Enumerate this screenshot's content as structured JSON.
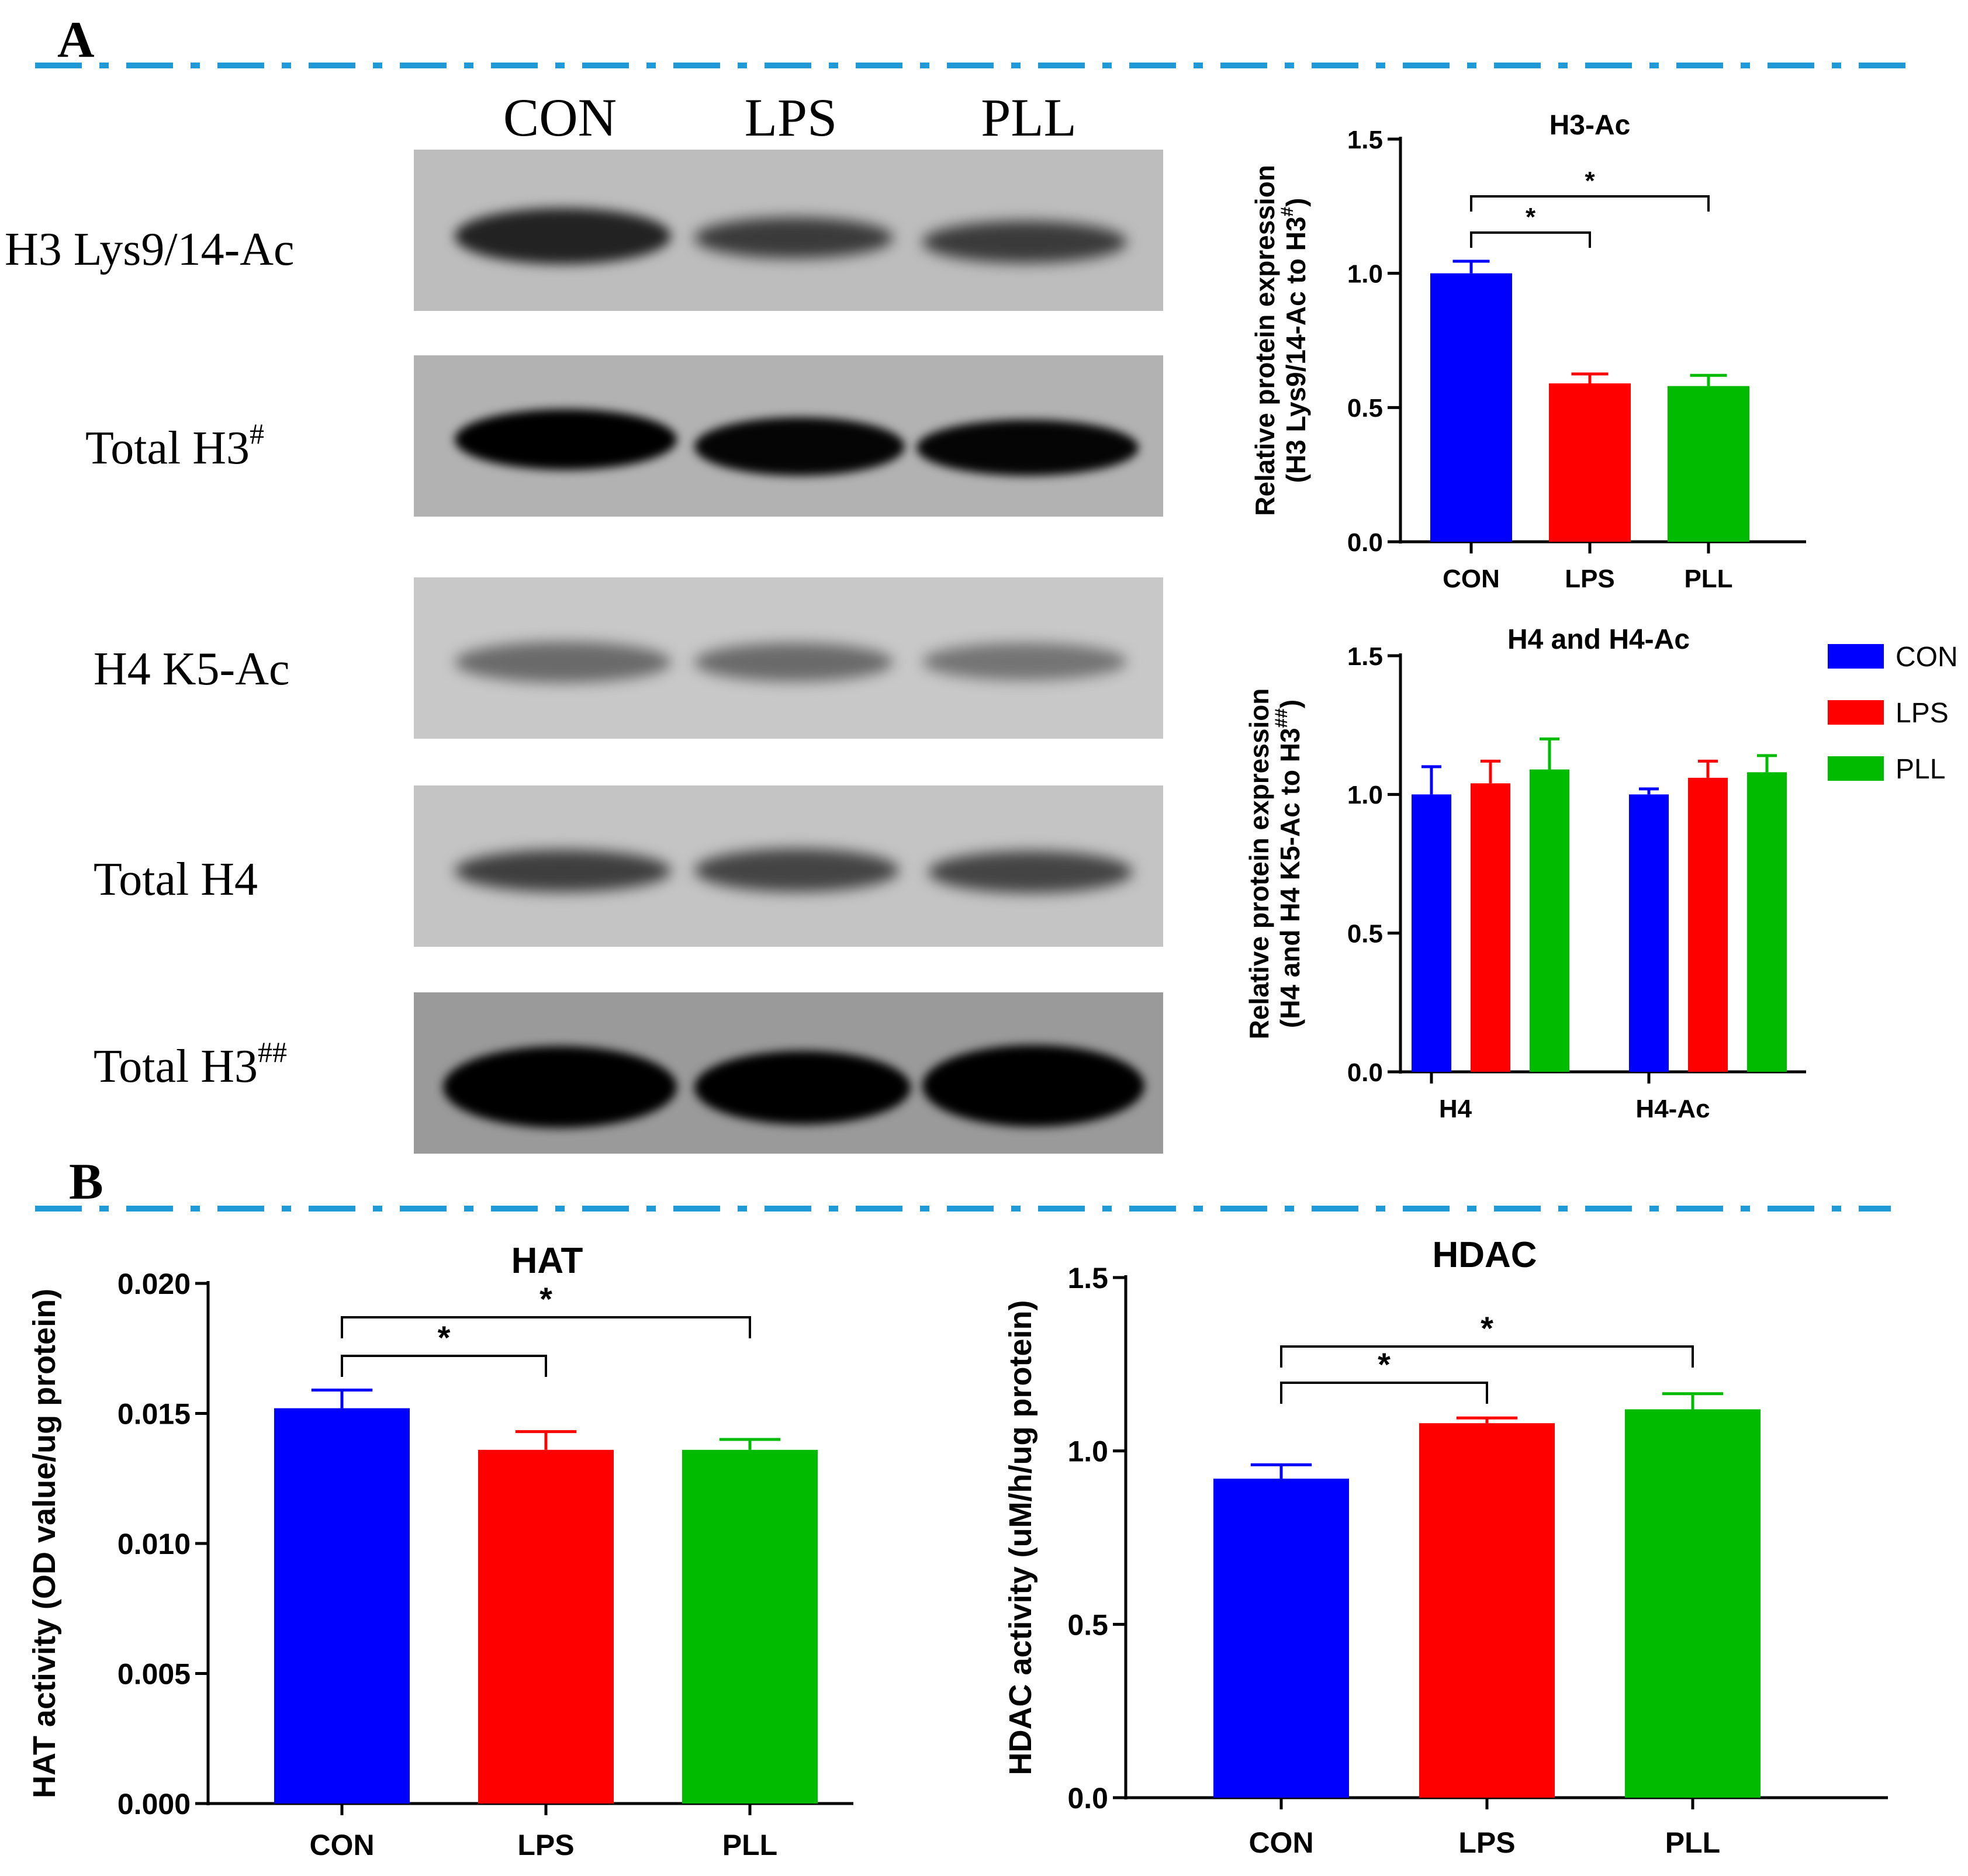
{
  "panels": {
    "a": "A",
    "b": "B"
  },
  "colors": {
    "divider": "#1f9ad6",
    "CON": "#0000ff",
    "LPS": "#ff0000",
    "PLL": "#00bb00"
  },
  "western_blot": {
    "lanes": [
      "CON",
      "LPS",
      "PLL"
    ],
    "rows": [
      {
        "label": "H3 Lys9/14-Ac",
        "sup": ""
      },
      {
        "label": "Total H3",
        "sup": "#"
      },
      {
        "label": "H4 K5-Ac",
        "sup": ""
      },
      {
        "label": "Total H4",
        "sup": ""
      },
      {
        "label": "Total H3",
        "sup": "##"
      }
    ]
  },
  "chart_data": [
    {
      "id": "h3ac",
      "type": "bar",
      "title": "H3-Ac",
      "categories": [
        "CON",
        "LPS",
        "PLL"
      ],
      "values": [
        1.0,
        0.59,
        0.58
      ],
      "errors": [
        0.045,
        0.035,
        0.04
      ],
      "ylabel_line1": "Relative protein expression",
      "ylabel_line2": "(H3 Lys9/14-Ac to H3",
      "ylabel_sup": "#",
      "ylabel_tail": ")",
      "ylim": [
        0,
        1.5
      ],
      "yticks": [
        "0.0",
        "0.5",
        "1.0",
        "1.5"
      ],
      "significance": [
        {
          "from": "CON",
          "to": "LPS",
          "label": "*"
        },
        {
          "from": "CON",
          "to": "PLL",
          "label": "*"
        }
      ]
    },
    {
      "id": "h4",
      "type": "bar",
      "title": "H4 and H4-Ac",
      "categories": [
        "H4",
        "H4-Ac"
      ],
      "series": [
        {
          "name": "CON",
          "values": [
            1.0,
            1.0
          ],
          "errors": [
            0.1,
            0.02
          ]
        },
        {
          "name": "LPS",
          "values": [
            1.04,
            1.06
          ],
          "errors": [
            0.08,
            0.06
          ]
        },
        {
          "name": "PLL",
          "values": [
            1.09,
            1.08
          ],
          "errors": [
            0.11,
            0.06
          ]
        }
      ],
      "ylabel_line1": "Relative protein expression",
      "ylabel_line2": "(H4 and H4 K5-Ac to H3",
      "ylabel_sup": "##",
      "ylabel_tail": ")",
      "ylim": [
        0,
        1.5
      ],
      "yticks": [
        "0.0",
        "0.5",
        "1.0",
        "1.5"
      ],
      "legend": [
        "CON",
        "LPS",
        "PLL"
      ],
      "legend_position": "right"
    },
    {
      "id": "hat",
      "type": "bar",
      "title": "HAT",
      "categories": [
        "CON",
        "LPS",
        "PLL"
      ],
      "values": [
        0.0152,
        0.0136,
        0.0136
      ],
      "errors": [
        0.0007,
        0.0007,
        0.0004
      ],
      "ylabel": "HAT activity (OD value/ug protein)",
      "ylim": [
        0,
        0.02
      ],
      "yticks": [
        "0.000",
        "0.005",
        "0.010",
        "0.015",
        "0.020"
      ],
      "significance": [
        {
          "from": "CON",
          "to": "LPS",
          "label": "*"
        },
        {
          "from": "CON",
          "to": "PLL",
          "label": "*"
        }
      ]
    },
    {
      "id": "hdac",
      "type": "bar",
      "title": "HDAC",
      "categories": [
        "CON",
        "LPS",
        "PLL"
      ],
      "values": [
        0.92,
        1.08,
        1.12
      ],
      "errors": [
        0.04,
        0.015,
        0.045
      ],
      "ylabel": "HDAC activity (uM/h/ug protein)",
      "ylim": [
        0,
        1.5
      ],
      "yticks": [
        "0.0",
        "0.5",
        "1.0",
        "1.5"
      ],
      "significance": [
        {
          "from": "CON",
          "to": "LPS",
          "label": "*"
        },
        {
          "from": "CON",
          "to": "PLL",
          "label": "*"
        }
      ]
    }
  ]
}
